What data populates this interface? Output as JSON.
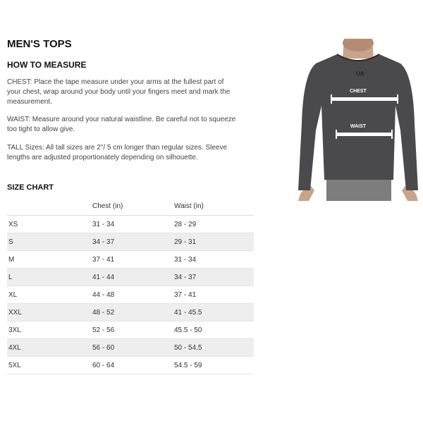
{
  "title": "MEN'S TOPS",
  "how_to": {
    "heading": "HOW TO MEASURE",
    "chest": "CHEST: Place the tape measure under your arms at the fullest part of your chest, wrap around your body until your fingers meet and mark the measurement.",
    "waist": "WAIST: Measure around your natural waistline. Be careful not to squeeze too tight to allow give.",
    "tall": "TALL Sizes: All tall sizes are 2\"/ 5 cm longer than regular sizes. Sleeve lengths are adjusted proportionately depending on silhouette."
  },
  "size_chart": {
    "heading": "SIZE CHART",
    "headers": [
      "",
      "Chest (in)",
      "Waist (in)"
    ],
    "rows": [
      [
        "XS",
        "31 - 34",
        "28 - 29"
      ],
      [
        "S",
        "34 - 37",
        "29 - 31"
      ],
      [
        "M",
        "37 - 41",
        "31 - 34"
      ],
      [
        "L",
        "41 - 44",
        "34 - 37"
      ],
      [
        "XL",
        "44 - 48",
        "37 - 41"
      ],
      [
        "XXL",
        "48 - 52",
        "41 - 45.5"
      ],
      [
        "3XL",
        "52 - 56",
        "45.5 - 50"
      ],
      [
        "4XL",
        "56 - 60",
        "50 - 54.5"
      ],
      [
        "5XL",
        "60 - 64",
        "54.5 - 59"
      ]
    ]
  },
  "figure": {
    "chest_label": "CHEST",
    "waist_label": "WAIST"
  }
}
